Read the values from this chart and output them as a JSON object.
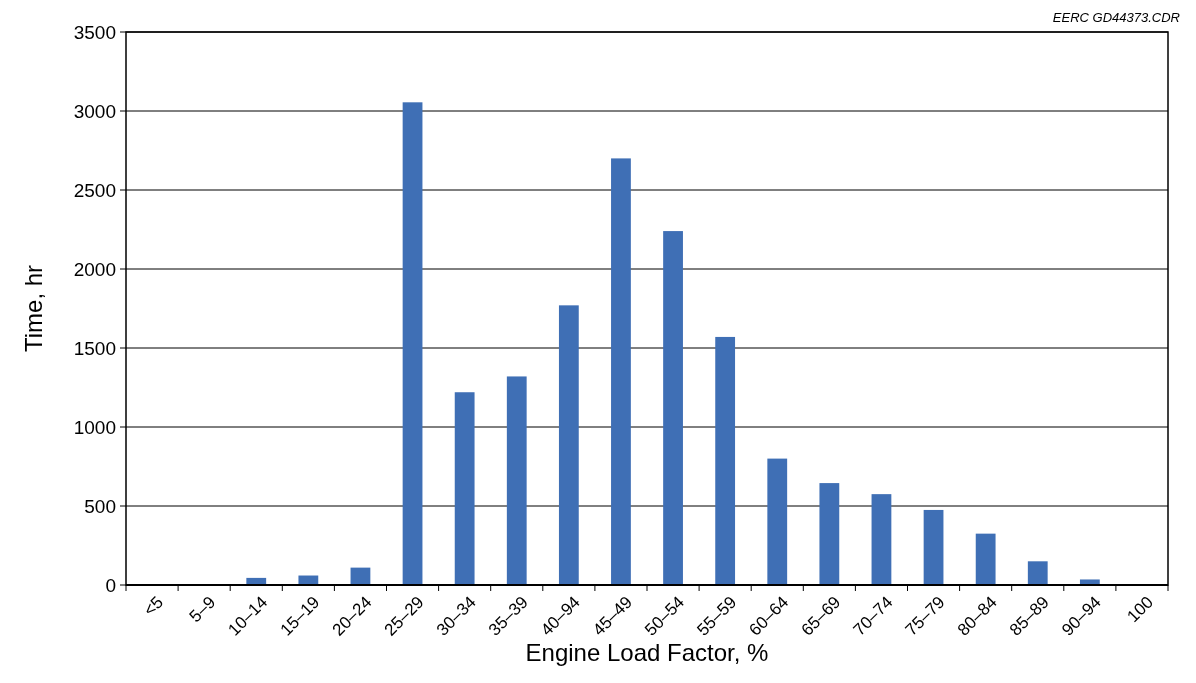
{
  "chart_data": {
    "type": "bar",
    "xlabel": "Engine Load Factor, %",
    "ylabel": "Time, hr",
    "categories": [
      "<5",
      "5–9",
      "10–14",
      "15–19",
      "20–24",
      "25–29",
      "30–34",
      "35–39",
      "40–94",
      "45–49",
      "50–54",
      "55–59",
      "60–64",
      "65–69",
      "70–74",
      "75–79",
      "80–84",
      "85–89",
      "90–94",
      "100"
    ],
    "values": [
      0,
      0,
      45,
      60,
      110,
      3055,
      1220,
      1320,
      1770,
      2700,
      2240,
      1570,
      800,
      645,
      575,
      475,
      325,
      150,
      35,
      0
    ],
    "color": "#3f6fb5",
    "ylim": [
      0,
      3500
    ],
    "yticks": [
      0,
      500,
      1000,
      1500,
      2000,
      2500,
      3000,
      3500
    ],
    "grid": "y",
    "annotations": [
      "EERC GD44373.CDR"
    ]
  }
}
